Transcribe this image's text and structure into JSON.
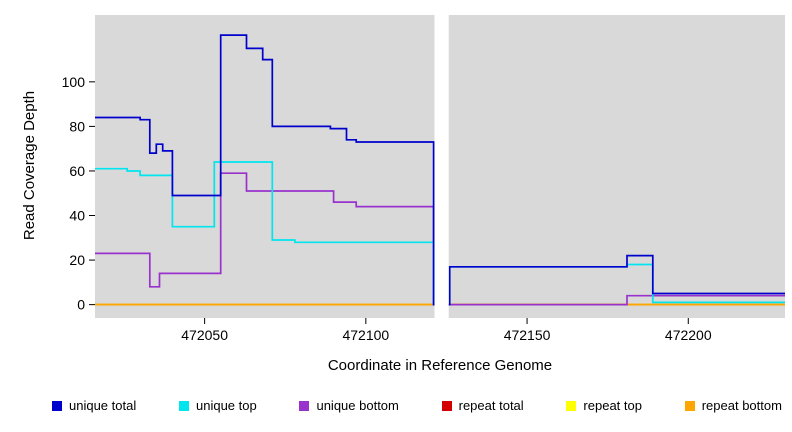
{
  "figure": {
    "background": "#ffffff"
  },
  "chart_data": {
    "type": "line",
    "step": "after",
    "title": "",
    "xlabel": "Coordinate in Reference Genome",
    "ylabel": "Read Coverage Depth",
    "x_range": [
      472016,
      472230
    ],
    "y_range": [
      -6,
      130
    ],
    "x_ticks": [
      472050,
      472100,
      472150,
      472200
    ],
    "y_ticks": [
      0,
      20,
      40,
      60,
      80,
      100
    ],
    "grid": false,
    "legend_position": "bottom",
    "plot_background": "#d9d9d9",
    "missing_region": {
      "from": 472121.3,
      "to": 472125.7,
      "color": "#ffffff"
    },
    "draw_order": [
      3,
      4,
      5,
      2,
      1,
      0
    ],
    "series": [
      {
        "name": "unique total",
        "color": "#0000CD",
        "points": [
          [
            472016,
            84
          ],
          [
            472030,
            83
          ],
          [
            472033,
            68
          ],
          [
            472035,
            72
          ],
          [
            472037,
            69
          ],
          [
            472040,
            49
          ],
          [
            472055,
            121
          ],
          [
            472063,
            115
          ],
          [
            472068,
            110
          ],
          [
            472071,
            80
          ],
          [
            472089,
            79
          ],
          [
            472094,
            74
          ],
          [
            472097,
            73
          ],
          [
            472121,
            0
          ],
          [
            472126,
            17
          ],
          [
            472181,
            22
          ],
          [
            472189,
            5
          ],
          [
            472230,
            5
          ]
        ]
      },
      {
        "name": "unique top",
        "color": "#00E5EE",
        "points": [
          [
            472016,
            61
          ],
          [
            472026,
            60
          ],
          [
            472030,
            58
          ],
          [
            472040,
            35
          ],
          [
            472053,
            64
          ],
          [
            472071,
            29
          ],
          [
            472078,
            28
          ],
          [
            472121,
            0
          ],
          [
            472126,
            17
          ],
          [
            472181,
            18
          ],
          [
            472189,
            1
          ],
          [
            472230,
            1
          ]
        ]
      },
      {
        "name": "unique bottom",
        "color": "#9932CC",
        "points": [
          [
            472016,
            23
          ],
          [
            472033,
            8
          ],
          [
            472036,
            14
          ],
          [
            472055,
            59
          ],
          [
            472063,
            51
          ],
          [
            472090,
            46
          ],
          [
            472097,
            44
          ],
          [
            472121,
            0
          ],
          [
            472181,
            4
          ],
          [
            472230,
            4
          ]
        ]
      },
      {
        "name": "repeat total",
        "color": "#D40000",
        "points": [
          [
            472016,
            0
          ],
          [
            472230,
            0
          ]
        ]
      },
      {
        "name": "repeat top",
        "color": "#FFFF00",
        "points": [
          [
            472016,
            0
          ],
          [
            472230,
            0
          ]
        ]
      },
      {
        "name": "repeat bottom",
        "color": "#FFA500",
        "points": [
          [
            472016,
            0
          ],
          [
            472230,
            0
          ]
        ]
      }
    ]
  }
}
